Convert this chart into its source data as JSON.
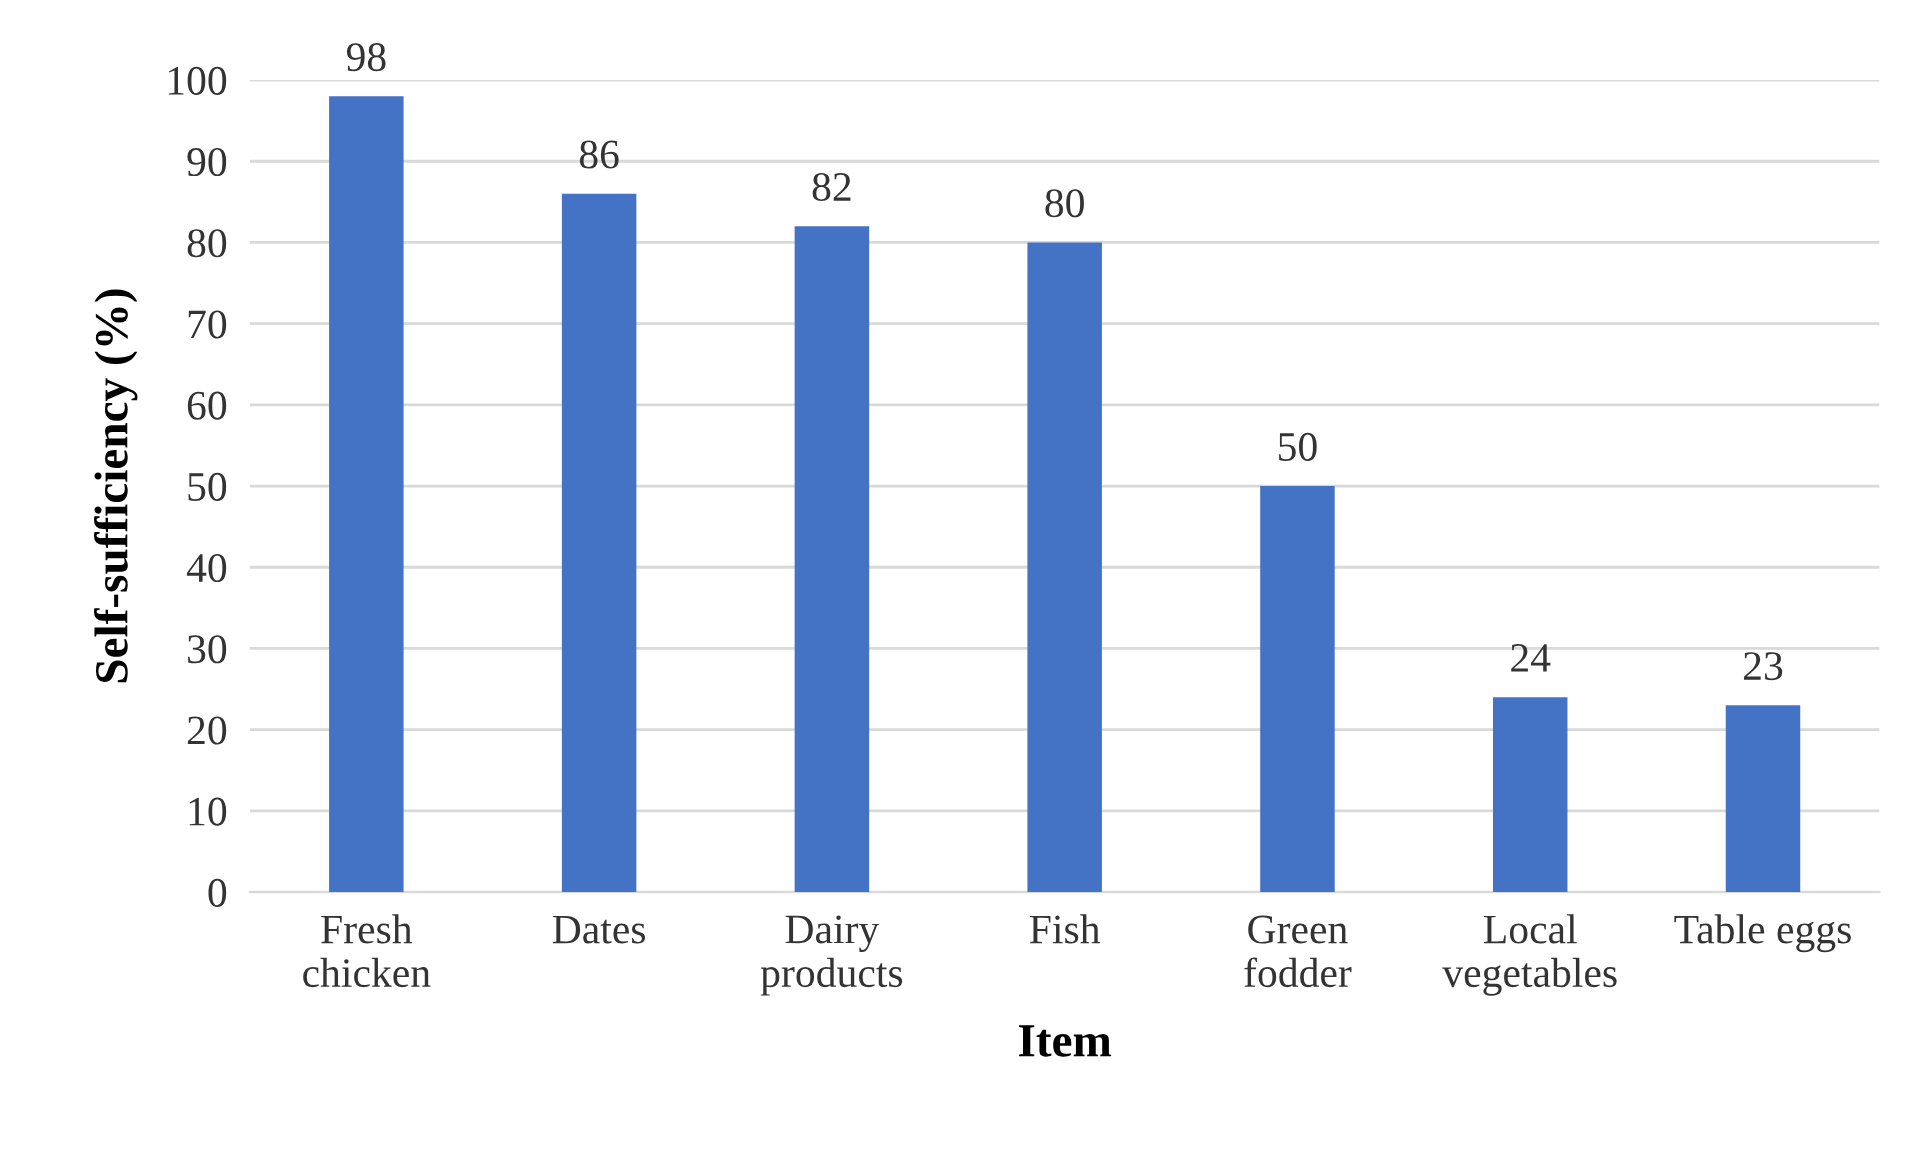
{
  "chart_data": {
    "type": "bar",
    "xlabel": "Item",
    "ylabel": "Self-sufficiency (%)",
    "categories": [
      "Fresh\nchicken",
      "Dates",
      "Dairy\nproducts",
      "Fish",
      "Green\nfodder",
      "Local\nvegetables",
      "Table eggs"
    ],
    "values": [
      98,
      86,
      82,
      80,
      50,
      24,
      23
    ],
    "color": "#4472c4",
    "ylim": [
      0,
      100
    ],
    "yticks": [
      0,
      10,
      20,
      30,
      40,
      50,
      60,
      70,
      80,
      90,
      100
    ],
    "grid": "y",
    "data_labels": true
  }
}
